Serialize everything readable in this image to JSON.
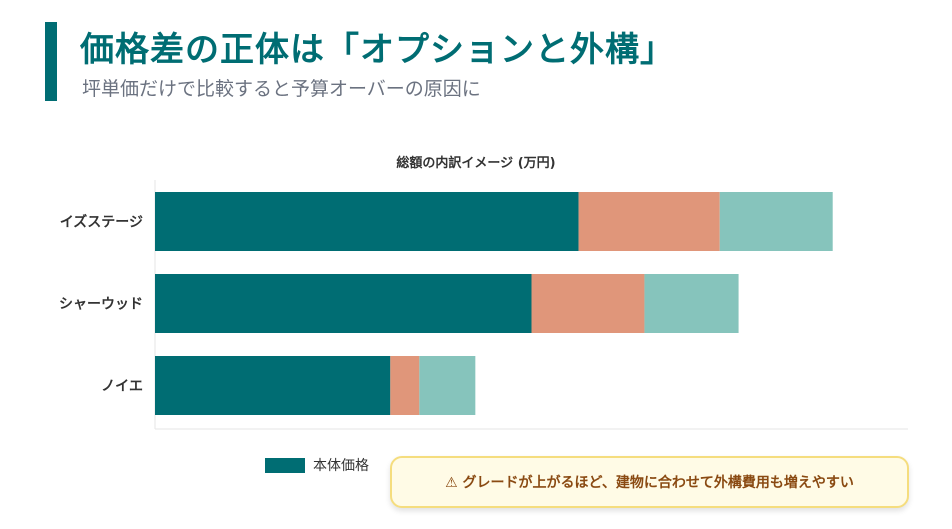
{
  "header": {
    "title": "価格差の正体は「オプションと外構」",
    "subtitle": "坪単価だけで比較すると予算オーバーの原因に"
  },
  "chart_data": {
    "type": "bar",
    "orientation": "horizontal",
    "stacked": true,
    "title": "総額の内訳イメージ (万円)",
    "categories": [
      "イズステージ",
      "シャーウッド",
      "ノイエ"
    ],
    "series": [
      {
        "name": "本体価格",
        "values": [
          2700,
          2400,
          1500
        ],
        "color": "#006d73"
      },
      {
        "values": [
          900,
          720,
          185
        ],
        "color": "#e0967a"
      },
      {
        "values": [
          720,
          600,
          357
        ],
        "color": "#86c4bc"
      }
    ],
    "xlim": [
      0,
      4800
    ],
    "grid": false,
    "legend": "bottom"
  },
  "callout": {
    "icon": "warning-icon",
    "text": "⚠ グレードが上がるほど、建物に合わせて外構費用も増えやすい"
  }
}
